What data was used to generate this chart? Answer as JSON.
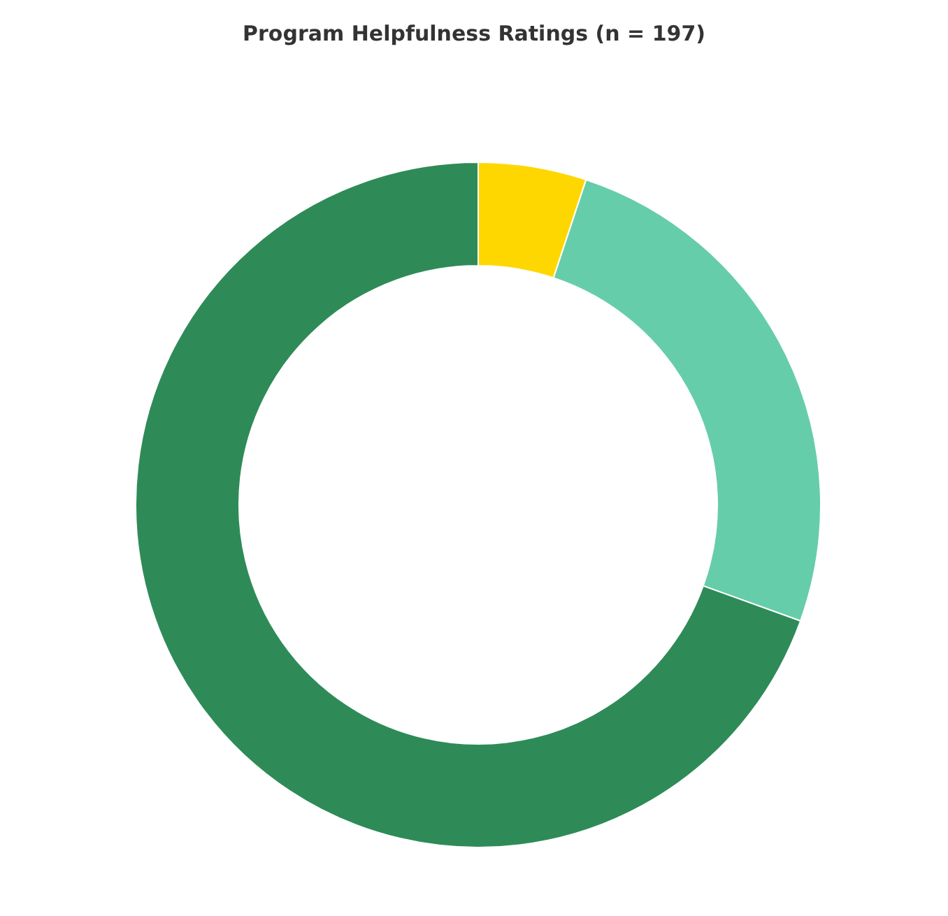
{
  "chart_data": {
    "type": "donut",
    "title": "Program Helpfulness Ratings (n = 197)",
    "categories": [
      null,
      null,
      null
    ],
    "values": [
      5.1,
      25.4,
      69.5
    ],
    "colors": [
      "#ffd700",
      "#66cdaa",
      "#2e8b57"
    ],
    "legend": false
  }
}
